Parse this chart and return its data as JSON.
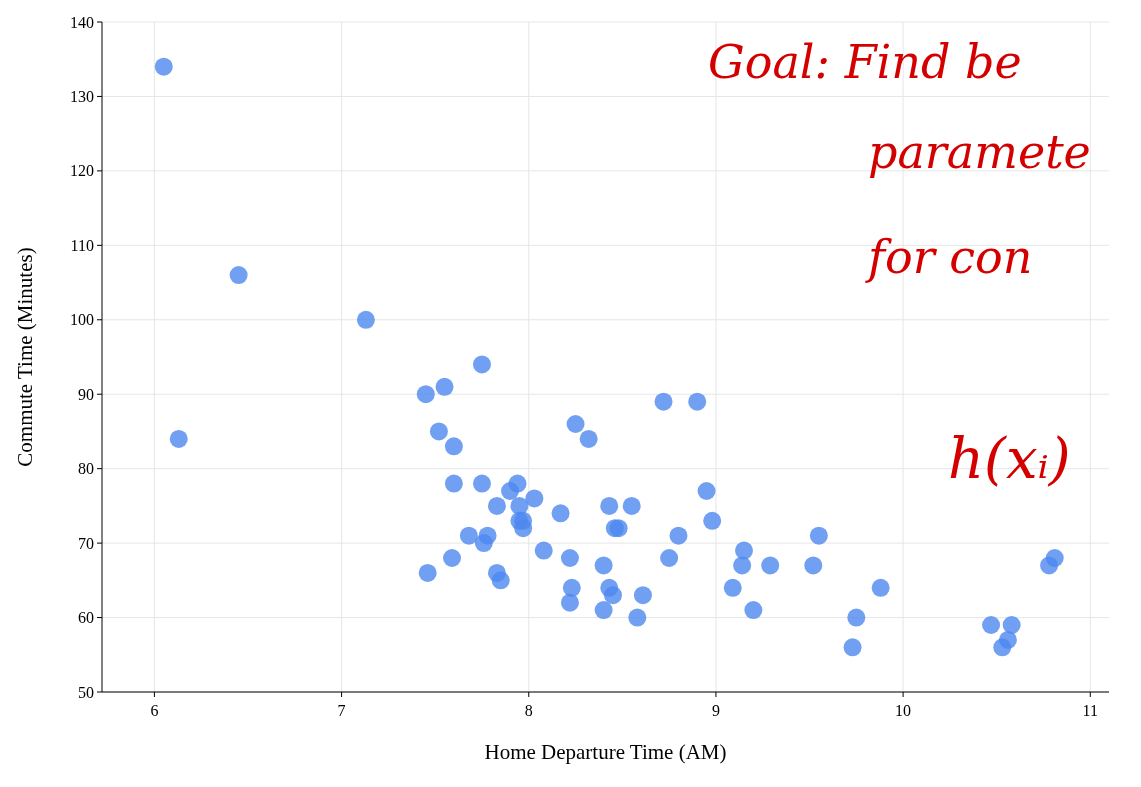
{
  "chart_data": {
    "type": "scatter",
    "xlabel": "Home Departure Time (AM)",
    "ylabel": "Commute Time (Minutes)",
    "xlim": [
      5.72,
      11.1
    ],
    "xticks": [
      6,
      7,
      8,
      9,
      10,
      11
    ],
    "ylim": [
      50,
      140
    ],
    "yticks": [
      50,
      60,
      70,
      80,
      90,
      100,
      110,
      120,
      130,
      140
    ],
    "grid": true,
    "marker": "circle",
    "annotations": [
      "Goal: Find be",
      "paramete",
      "for con",
      "h(xᵢ)"
    ],
    "series": [
      {
        "color": "#4d88f0",
        "x": [
          6.05,
          6.13,
          6.45,
          7.13,
          7.45,
          7.55,
          7.75,
          7.52,
          7.6,
          7.6,
          7.75,
          7.9,
          7.94,
          7.83,
          7.95,
          8.03,
          7.95,
          7.97,
          7.97,
          7.68,
          7.78,
          7.76,
          7.46,
          7.59,
          7.83,
          7.85,
          8.08,
          8.17,
          8.25,
          8.32,
          8.22,
          8.23,
          8.22,
          8.4,
          8.43,
          8.46,
          8.48,
          8.55,
          8.43,
          8.45,
          8.4,
          8.58,
          8.61,
          8.72,
          8.9,
          8.95,
          8.98,
          8.8,
          8.75,
          9.15,
          9.14,
          9.09,
          9.2,
          9.29,
          9.55,
          9.52,
          9.75,
          9.73,
          9.88,
          10.47,
          10.53,
          10.56,
          10.58,
          10.78,
          10.81
        ],
        "values": [
          134,
          84,
          106,
          100,
          90,
          91,
          94,
          85,
          83,
          78,
          78,
          77,
          78,
          75,
          75,
          76,
          73,
          73,
          72,
          71,
          71,
          70,
          66,
          68,
          66,
          65,
          69,
          74,
          86,
          84,
          68,
          64,
          62,
          67,
          75,
          72,
          72,
          75,
          64,
          63,
          61,
          60,
          63,
          89,
          89,
          77,
          73,
          71,
          68,
          69,
          67,
          64,
          61,
          67,
          71,
          67,
          60,
          56,
          64,
          59,
          56,
          57,
          59,
          67,
          68
        ]
      }
    ]
  }
}
